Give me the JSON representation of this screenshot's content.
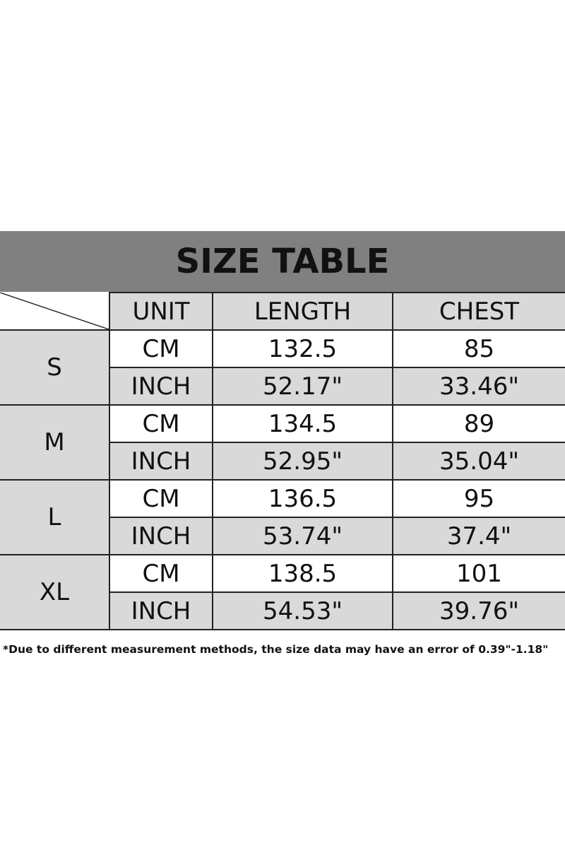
{
  "title": "SIZE TABLE",
  "headers": {
    "unit": "UNIT",
    "length": "LENGTH",
    "chest": "CHEST"
  },
  "rows": [
    {
      "size": "S",
      "cm": {
        "unit": "CM",
        "length": "132.5",
        "chest": "85"
      },
      "inch": {
        "unit": "INCH",
        "length": "52.17\"",
        "chest": "33.46\""
      }
    },
    {
      "size": "M",
      "cm": {
        "unit": "CM",
        "length": "134.5",
        "chest": "89"
      },
      "inch": {
        "unit": "INCH",
        "length": "52.95\"",
        "chest": "35.04\""
      }
    },
    {
      "size": "L",
      "cm": {
        "unit": "CM",
        "length": "136.5",
        "chest": "95"
      },
      "inch": {
        "unit": "INCH",
        "length": "53.74\"",
        "chest": "37.4\""
      }
    },
    {
      "size": "XL",
      "cm": {
        "unit": "CM",
        "length": "138.5",
        "chest": "101"
      },
      "inch": {
        "unit": "INCH",
        "length": "54.53\"",
        "chest": "39.76\""
      }
    }
  ],
  "note": "*Due to different measurement methods, the size data may have an error of 0.39\"-1.18\""
}
